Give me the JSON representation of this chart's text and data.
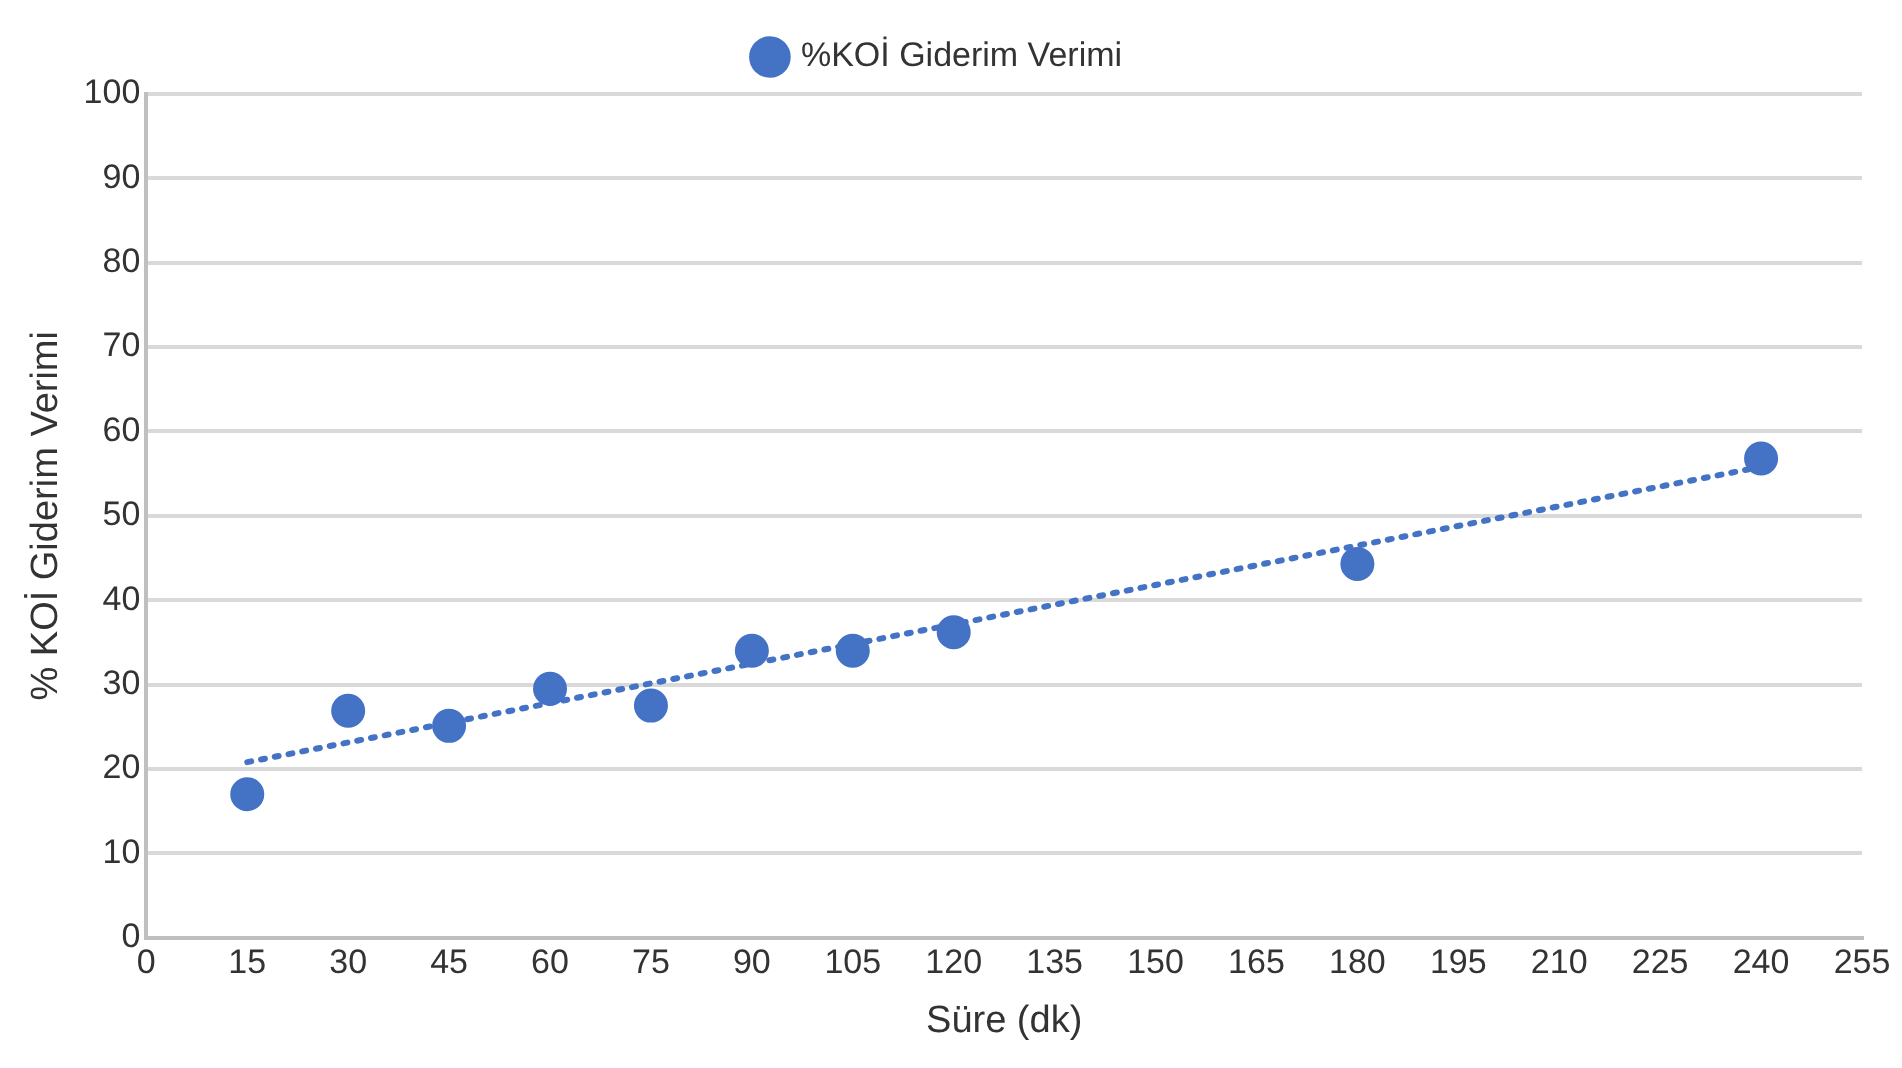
{
  "chart_data": {
    "type": "scatter",
    "xlabel": "Süre (dk)",
    "ylabel": "% KOİ Giderim Verimi",
    "xlim": [
      0,
      255
    ],
    "xticks": [
      0,
      15,
      30,
      45,
      60,
      75,
      90,
      105,
      120,
      135,
      150,
      165,
      180,
      195,
      210,
      225,
      240,
      255
    ],
    "ylim": [
      0,
      100
    ],
    "yticks": [
      0,
      10,
      20,
      30,
      40,
      50,
      60,
      70,
      80,
      90,
      100
    ],
    "grid": "y",
    "legend": "top",
    "marker": "circle",
    "series": [
      {
        "name": "%KOİ Giderim Verimi",
        "color": "#4472c4",
        "x": [
          15,
          30,
          45,
          60,
          75,
          90,
          105,
          120,
          180,
          240
        ],
        "values": [
          17.0,
          26.9,
          25.1,
          29.5,
          27.5,
          34.0,
          34.0,
          36.2,
          44.3,
          56.8
        ]
      },
      {
        "type": "line",
        "line_style": "dotted",
        "marker": "none",
        "color": "#4472c4",
        "x": [
          15,
          240
        ],
        "values": [
          20.8,
          55.8
        ]
      }
    ]
  }
}
